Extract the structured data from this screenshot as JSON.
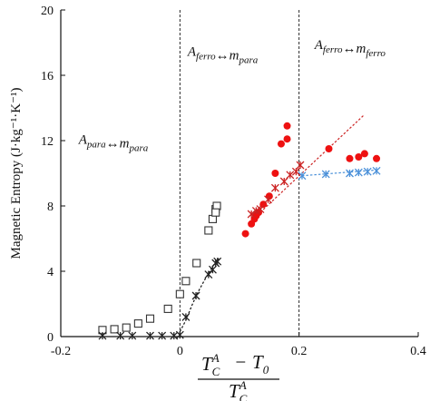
{
  "chart_data": {
    "type": "scatter",
    "title": "",
    "xlabel": {
      "numerator_lhs": "T",
      "numerator_lhs_sub": "C",
      "numerator_lhs_sup": "A",
      "minus": "−",
      "numerator_rhs": "T",
      "numerator_rhs_sub": "0",
      "denominator": "T",
      "denominator_sub": "C",
      "denominator_sup": "A"
    },
    "ylabel": "Magnetic Entropy (J·kg⁻¹·K⁻¹)",
    "xlim": [
      -0.2,
      0.4
    ],
    "ylim": [
      0,
      20
    ],
    "xticks": [
      -0.2,
      0,
      0.2,
      0.4
    ],
    "xtick_labels": [
      "-0.2",
      "0",
      "0.2",
      "0.4"
    ],
    "yticks": [
      0,
      4,
      8,
      12,
      16,
      20
    ],
    "ytick_labels": [
      "0",
      "4",
      "8",
      "12",
      "16",
      "20"
    ],
    "grid": false,
    "vlines": [
      0,
      0.2
    ],
    "region_labels": [
      {
        "parts": [
          {
            "t": "A",
            "sub": "para"
          },
          {
            "t": "↔"
          },
          {
            "t": "m",
            "sub": "para"
          }
        ],
        "x": -0.17,
        "y": 11.8
      },
      {
        "parts": [
          {
            "t": "A",
            "sub": "ferro"
          },
          {
            "t": "↔"
          },
          {
            "t": "m",
            "sub": "para"
          }
        ],
        "x": 0.013,
        "y": 17.2
      },
      {
        "parts": [
          {
            "t": "A",
            "sub": "ferro"
          },
          {
            "t": "↔"
          },
          {
            "t": "m",
            "sub": "ferro"
          }
        ],
        "x": 0.226,
        "y": 17.6
      }
    ],
    "series": [
      {
        "marker": "square-open",
        "color": "#333333",
        "points": [
          [
            -0.13,
            0.4
          ],
          [
            -0.11,
            0.45
          ],
          [
            -0.09,
            0.55
          ],
          [
            -0.07,
            0.8
          ],
          [
            -0.05,
            1.1
          ],
          [
            -0.02,
            1.7
          ],
          [
            0.0,
            2.6
          ],
          [
            0.01,
            3.4
          ],
          [
            0.028,
            4.5
          ],
          [
            0.048,
            6.5
          ],
          [
            0.055,
            7.2
          ],
          [
            0.06,
            7.8
          ],
          [
            0.062,
            8.0
          ],
          [
            0.06,
            7.6
          ]
        ]
      },
      {
        "marker": "asterisk",
        "color": "#222222",
        "points": [
          [
            -0.13,
            0.05
          ],
          [
            -0.1,
            0.05
          ],
          [
            -0.08,
            0.05
          ],
          [
            -0.05,
            0.05
          ],
          [
            -0.03,
            0.05
          ],
          [
            -0.01,
            0.05
          ],
          [
            0.0,
            0.1
          ],
          [
            0.01,
            1.2
          ],
          [
            0.027,
            2.5
          ],
          [
            0.048,
            3.8
          ],
          [
            0.055,
            4.1
          ],
          [
            0.06,
            4.5
          ],
          [
            0.063,
            4.6
          ]
        ]
      },
      {
        "marker": "circle-filled",
        "color": "#ee1111",
        "points": [
          [
            0.11,
            6.3
          ],
          [
            0.12,
            6.9
          ],
          [
            0.125,
            7.2
          ],
          [
            0.128,
            7.4
          ],
          [
            0.132,
            7.6
          ],
          [
            0.14,
            8.1
          ],
          [
            0.15,
            8.6
          ],
          [
            0.16,
            10.0
          ],
          [
            0.17,
            11.8
          ],
          [
            0.18,
            12.1
          ],
          [
            0.18,
            12.9
          ],
          [
            0.25,
            11.5
          ],
          [
            0.285,
            10.9
          ],
          [
            0.3,
            11.0
          ],
          [
            0.31,
            11.2
          ],
          [
            0.33,
            10.9
          ]
        ]
      },
      {
        "marker": "asterisk",
        "color": "#cc2222",
        "points": [
          [
            0.12,
            7.5
          ],
          [
            0.128,
            7.7
          ],
          [
            0.135,
            7.8
          ],
          [
            0.148,
            8.4
          ],
          [
            0.16,
            9.1
          ],
          [
            0.175,
            9.5
          ],
          [
            0.185,
            9.9
          ],
          [
            0.195,
            10.1
          ],
          [
            0.202,
            10.5
          ]
        ]
      },
      {
        "marker": "asterisk",
        "color": "#4a90d9",
        "points": [
          [
            0.205,
            9.85
          ],
          [
            0.245,
            9.95
          ],
          [
            0.285,
            10.0
          ],
          [
            0.3,
            10.05
          ],
          [
            0.315,
            10.1
          ],
          [
            0.33,
            10.15
          ]
        ]
      }
    ],
    "trendlines": [
      {
        "color": "#111111",
        "points": [
          [
            0.0,
            0.3
          ],
          [
            0.01,
            1.0
          ],
          [
            0.02,
            1.9
          ],
          [
            0.03,
            2.7
          ],
          [
            0.045,
            3.7
          ],
          [
            0.055,
            4.3
          ],
          [
            0.065,
            4.8
          ]
        ]
      },
      {
        "color": "#cc2222",
        "points": [
          [
            0.12,
            7.1
          ],
          [
            0.31,
            13.6
          ]
        ]
      },
      {
        "color": "#4a90d9",
        "points": [
          [
            0.205,
            9.85
          ],
          [
            0.33,
            10.2
          ]
        ]
      }
    ]
  }
}
